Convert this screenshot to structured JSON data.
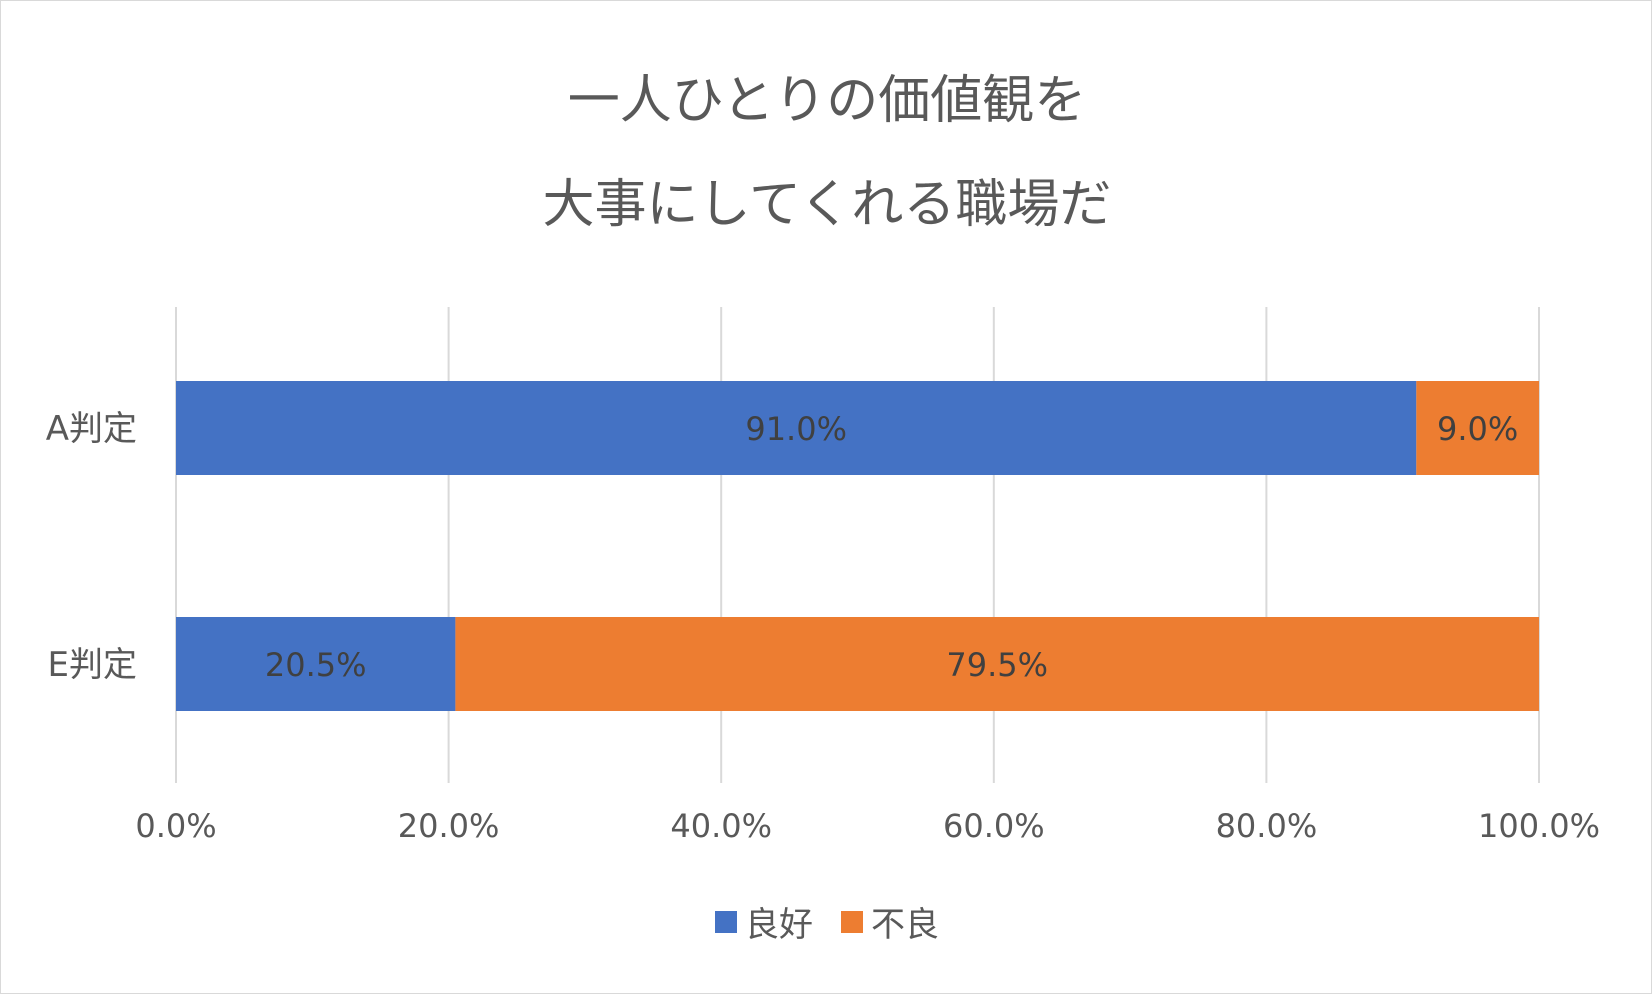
{
  "chart_data": {
    "type": "bar",
    "orientation": "horizontal",
    "stacked": true,
    "title_lines": [
      "一人ひとりの価値観を",
      "大事にしてくれる職場だ"
    ],
    "categories": [
      "A判定",
      "E判定"
    ],
    "series": [
      {
        "name": "良好",
        "color": "#4472C4",
        "values": [
          91.0,
          20.5
        ],
        "labels": [
          "91.0%",
          "20.5%"
        ]
      },
      {
        "name": "不良",
        "color": "#ED7D31",
        "values": [
          9.0,
          79.5
        ],
        "labels": [
          "9.0%",
          "79.5%"
        ]
      }
    ],
    "xlim": [
      0,
      100
    ],
    "x_ticks": [
      0,
      20,
      40,
      60,
      80,
      100
    ],
    "x_tick_labels": [
      "0.0%",
      "20.0%",
      "40.0%",
      "60.0%",
      "80.0%",
      "100.0%"
    ],
    "grid": true,
    "legend_position": "bottom"
  }
}
